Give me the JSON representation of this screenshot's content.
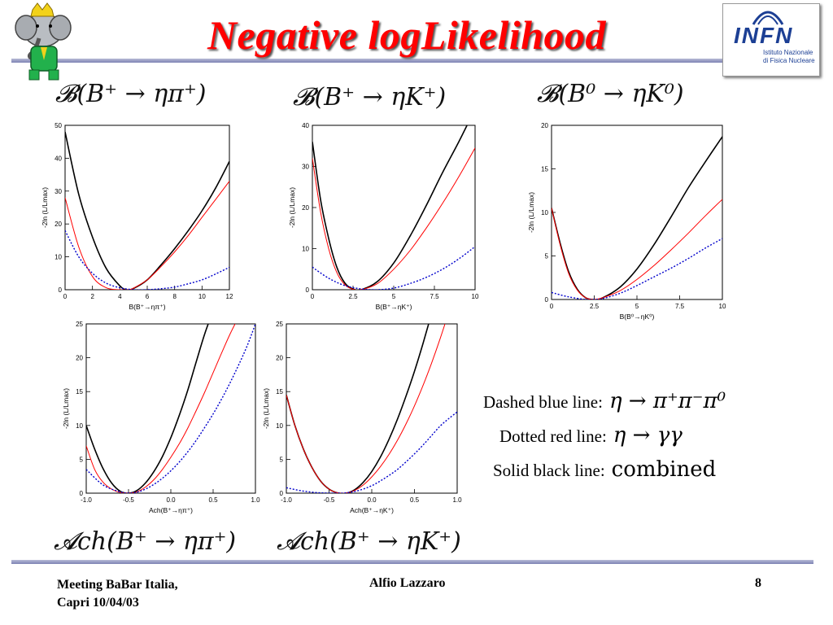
{
  "slide": {
    "title": "Negative logLikelihood",
    "logo_text": "INFN",
    "logo_subtitle_line1": "Istituto Nazionale",
    "logo_subtitle_line2": "di Fisica Nucleare"
  },
  "formulas": {
    "top1": "𝓑(B⁺ → ηπ⁺)",
    "top2": "𝓑(B⁺ → ηK⁺)",
    "top3": "𝓑(B⁰ → ηK⁰)",
    "bottom1": "𝓐ch(B⁺ → ηπ⁺)",
    "bottom2": "𝓐ch(B⁺ → ηK⁺)"
  },
  "legend": {
    "blue_label": "Dashed blue line:",
    "blue_math": "η → π⁺π⁻π⁰",
    "red_label": "Dotted red line:",
    "red_math": "η → γγ",
    "black_label": "Solid black line:",
    "black_text": "combined"
  },
  "footer": {
    "left_line1": "Meeting BaBar Italia,",
    "left_line2": "Capri 10/04/03",
    "center": "Alfio Lazzaro",
    "page": "8"
  },
  "colors": {
    "title": "#ff0000",
    "blue": "#0000cc",
    "red": "#ff0000",
    "black": "#000000"
  },
  "chart_data": [
    {
      "type": "line",
      "xlabel": "B(B⁺→ηπ⁺)",
      "ylabel": "-2ln (L/Lmax)",
      "xlim": [
        0,
        12
      ],
      "ylim": [
        0,
        50
      ],
      "xticks": [
        "0",
        "2",
        "4",
        "6",
        "8",
        "10",
        "12"
      ],
      "yticks": [
        "0",
        "10",
        "20",
        "30",
        "40",
        "50"
      ],
      "series": [
        {
          "style": "black",
          "x": [
            0,
            1,
            2,
            3,
            4,
            4.5,
            5,
            6,
            7,
            8,
            9,
            10,
            11,
            12
          ],
          "y": [
            48,
            29,
            16,
            6.5,
            1.2,
            0,
            0.4,
            3,
            7.5,
            12.5,
            18,
            24,
            31,
            39
          ]
        },
        {
          "style": "red",
          "x": [
            0,
            1,
            2,
            3,
            4,
            4.7,
            5,
            6,
            7,
            8,
            9,
            10,
            11,
            12
          ],
          "y": [
            28,
            13,
            4,
            0.6,
            0,
            0,
            0.5,
            3,
            7,
            11.5,
            16.5,
            22,
            27.5,
            33
          ]
        },
        {
          "style": "blue",
          "x": [
            0,
            1,
            2,
            3,
            4,
            5,
            6,
            7,
            8,
            9,
            10,
            11,
            12
          ],
          "y": [
            18,
            10,
            5,
            2,
            0.6,
            0,
            0,
            0.3,
            0.8,
            1.8,
            3,
            4.8,
            6.8
          ]
        }
      ]
    },
    {
      "type": "line",
      "xlabel": "B(B⁺→ηK⁺)",
      "ylabel": "-2ln (L/Lmax)",
      "xlim": [
        0,
        10
      ],
      "ylim": [
        0,
        40
      ],
      "xticks": [
        "0",
        "2.5",
        "5",
        "7.5",
        "10"
      ],
      "yticks": [
        "0",
        "10",
        "20",
        "30",
        "40"
      ],
      "series": [
        {
          "style": "black",
          "x": [
            0,
            0.5,
            1,
            1.5,
            2,
            2.5,
            3,
            4,
            5,
            6,
            7,
            8,
            9,
            10
          ],
          "y": [
            36,
            22,
            12.5,
            5.5,
            1.6,
            0.2,
            0,
            2,
            6.5,
            13,
            20.5,
            28.5,
            36,
            44
          ]
        },
        {
          "style": "red",
          "x": [
            0,
            0.5,
            1,
            1.5,
            2,
            2.5,
            3,
            4,
            5,
            6,
            7,
            8,
            9,
            10
          ],
          "y": [
            32,
            19,
            10,
            4.2,
            1.2,
            0.1,
            0,
            1.5,
            5,
            9.5,
            15,
            21,
            27.5,
            34.5
          ]
        },
        {
          "style": "blue",
          "x": [
            0,
            1,
            2,
            3,
            4,
            5,
            6,
            7,
            8,
            9,
            10
          ],
          "y": [
            5.5,
            2.8,
            1,
            0.2,
            0,
            0.4,
            1.5,
            3,
            5,
            7.5,
            10.5
          ]
        }
      ]
    },
    {
      "type": "line",
      "xlabel": "B(B⁰→ηK⁰)",
      "ylabel": "-2ln (L/Lmax)",
      "xlim": [
        0,
        10
      ],
      "ylim": [
        0,
        20
      ],
      "xticks": [
        "0",
        "2.5",
        "5",
        "7.5",
        "10"
      ],
      "yticks": [
        "0",
        "5",
        "10",
        "15",
        "20"
      ],
      "series": [
        {
          "style": "black",
          "x": [
            0,
            0.5,
            1,
            1.5,
            2,
            2.5,
            3,
            4,
            5,
            6,
            7,
            8,
            9,
            10
          ],
          "y": [
            10.5,
            6.5,
            3.2,
            1.2,
            0.2,
            0,
            0.2,
            1.4,
            3.5,
            6.3,
            9.5,
            12.8,
            15.8,
            18.7
          ]
        },
        {
          "style": "red",
          "x": [
            0,
            0.5,
            1,
            1.5,
            2,
            2.5,
            3,
            4,
            5,
            6,
            7,
            8,
            9,
            10
          ],
          "y": [
            10.5,
            6.3,
            3,
            1.1,
            0.2,
            0,
            0.2,
            1,
            2.3,
            3.9,
            5.7,
            7.6,
            9.6,
            11.5
          ]
        },
        {
          "style": "blue",
          "x": [
            0,
            1,
            2,
            2.5,
            3,
            4,
            5,
            6,
            7,
            8,
            9,
            10
          ],
          "y": [
            0.8,
            0.3,
            0,
            0,
            0.1,
            0.7,
            1.6,
            2.6,
            3.6,
            4.7,
            5.9,
            7
          ]
        }
      ]
    },
    {
      "type": "line",
      "xlabel": "Ach(B⁺→ηπ⁺)",
      "ylabel": "-2ln (L/Lmax)",
      "xlim": [
        -1.0,
        1.0
      ],
      "ylim": [
        0,
        25
      ],
      "xticks": [
        "-1.0",
        "-0.5",
        "0.0",
        "0.5",
        "1.0"
      ],
      "yticks": [
        "0",
        "5",
        "10",
        "15",
        "20",
        "25"
      ],
      "series": [
        {
          "style": "black",
          "x": [
            -1,
            -0.9,
            -0.8,
            -0.7,
            -0.6,
            -0.5,
            -0.4,
            -0.3,
            -0.2,
            -0.1,
            0,
            0.1,
            0.2,
            0.3,
            0.4,
            0.5
          ],
          "y": [
            10,
            6.5,
            3.6,
            1.5,
            0.3,
            0,
            0.4,
            1.5,
            3.2,
            5.4,
            8.2,
            11.5,
            15.2,
            19.4,
            23.5,
            27
          ]
        },
        {
          "style": "red",
          "x": [
            -1,
            -0.9,
            -0.8,
            -0.7,
            -0.6,
            -0.5,
            -0.4,
            -0.3,
            -0.2,
            -0.1,
            0,
            0.1,
            0.2,
            0.3,
            0.4,
            0.5,
            0.6,
            0.7,
            0.8
          ],
          "y": [
            7,
            3.5,
            1.6,
            0.6,
            0.1,
            0,
            0.2,
            0.9,
            2,
            3.5,
            5.3,
            7.3,
            9.6,
            12.2,
            14.9,
            17.8,
            20.7,
            23.5,
            26
          ]
        },
        {
          "style": "blue",
          "x": [
            -1,
            -0.8,
            -0.6,
            -0.5,
            -0.4,
            -0.3,
            -0.2,
            -0.1,
            0,
            0.1,
            0.2,
            0.3,
            0.4,
            0.5,
            0.6,
            0.7,
            0.8,
            0.9,
            1.0
          ],
          "y": [
            3.5,
            1.2,
            0.2,
            0,
            0.15,
            0.6,
            1.3,
            2.2,
            3.3,
            4.6,
            6.1,
            7.8,
            9.7,
            11.7,
            13.9,
            16.3,
            18.9,
            21.7,
            25
          ]
        }
      ]
    },
    {
      "type": "line",
      "xlabel": "Ach(B⁺→ηK⁺)",
      "ylabel": "-2ln (L/Lmax)",
      "xlim": [
        -1.0,
        1.0
      ],
      "ylim": [
        0,
        25
      ],
      "xticks": [
        "-1.0",
        "-0.5",
        "0.0",
        "0.5",
        "1.0"
      ],
      "yticks": [
        "0",
        "5",
        "10",
        "15",
        "20",
        "25"
      ],
      "series": [
        {
          "style": "black",
          "x": [
            -1,
            -0.9,
            -0.8,
            -0.7,
            -0.6,
            -0.5,
            -0.4,
            -0.3,
            -0.2,
            -0.1,
            0,
            0.1,
            0.2,
            0.3,
            0.4,
            0.5,
            0.6,
            0.7,
            0.8
          ],
          "y": [
            14.5,
            10,
            6.5,
            3.8,
            1.8,
            0.6,
            0.05,
            0,
            0.5,
            1.6,
            3.2,
            5.3,
            7.9,
            10.9,
            14.3,
            18,
            22.1,
            26.5,
            31
          ]
        },
        {
          "style": "red",
          "x": [
            -1,
            -0.9,
            -0.8,
            -0.7,
            -0.6,
            -0.5,
            -0.4,
            -0.3,
            -0.2,
            -0.1,
            0,
            0.1,
            0.2,
            0.3,
            0.4,
            0.5,
            0.6,
            0.7,
            0.8,
            0.9
          ],
          "y": [
            14.5,
            10,
            6.5,
            3.8,
            1.8,
            0.6,
            0.05,
            0,
            0.4,
            1.2,
            2.4,
            3.9,
            5.7,
            7.8,
            10.2,
            12.9,
            15.9,
            19.2,
            22.8,
            26.7
          ]
        },
        {
          "style": "blue",
          "x": [
            -1,
            -0.8,
            -0.6,
            -0.4,
            -0.3,
            -0.2,
            -0.1,
            0,
            0.1,
            0.2,
            0.3,
            0.4,
            0.5,
            0.6,
            0.7,
            0.8,
            0.9,
            1.0
          ],
          "y": [
            0.8,
            0.3,
            0.05,
            0,
            0.05,
            0.25,
            0.6,
            1.1,
            1.8,
            2.6,
            3.5,
            4.6,
            5.8,
            7.1,
            8.5,
            9.9,
            11,
            12
          ]
        }
      ]
    }
  ]
}
